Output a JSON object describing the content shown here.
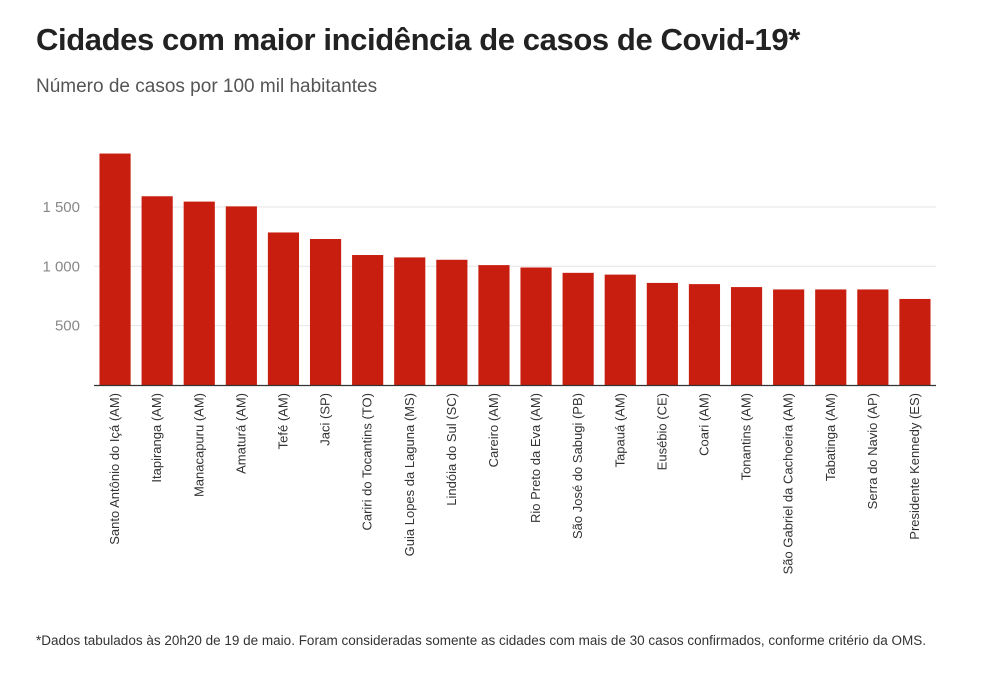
{
  "header": {
    "title": "Cidades com maior incidência de casos de Covid-19*",
    "subtitle": "Número de casos por 100 mil habitantes"
  },
  "footnote": "*Dados tabulados às 20h20 de 19 de maio. Foram consideradas somente as cidades com mais de 30 casos confirmados, conforme critério da OMS.",
  "colors": {
    "bar": "#c81e0f",
    "grid": "#e6e6e6",
    "axis": "#333333"
  },
  "chart_data": {
    "type": "bar",
    "title": "Cidades com maior incidência de casos de Covid-19*",
    "subtitle": "Número de casos por 100 mil habitantes",
    "xlabel": "",
    "ylabel": "",
    "ylim": [
      0,
      2000
    ],
    "yticks": [
      500,
      1000,
      1500
    ],
    "ytick_labels": [
      "500",
      "1 000",
      "1 500"
    ],
    "grid": true,
    "categories": [
      "Santo Antônio do Içá (AM)",
      "Itapiranga (AM)",
      "Manacapuru (AM)",
      "Amaturá (AM)",
      "Tefé (AM)",
      "Jaci (SP)",
      "Cariri do Tocantins (TO)",
      "Guia Lopes da Laguna (MS)",
      "Lindóia do Sul (SC)",
      "Careiro (AM)",
      "Rio Preto da Eva (AM)",
      "São José do Sabugi (PB)",
      "Tapauá (AM)",
      "Eusébio (CE)",
      "Coari (AM)",
      "Tonantins (AM)",
      "São Gabriel da Cachoeira (AM)",
      "Tabatinga (AM)",
      "Serra do Navio (AP)",
      "Presidente Kennedy (ES)"
    ],
    "values": [
      1950,
      1590,
      1545,
      1505,
      1285,
      1230,
      1095,
      1075,
      1055,
      1010,
      990,
      945,
      930,
      860,
      850,
      825,
      805,
      805,
      805,
      725
    ]
  }
}
